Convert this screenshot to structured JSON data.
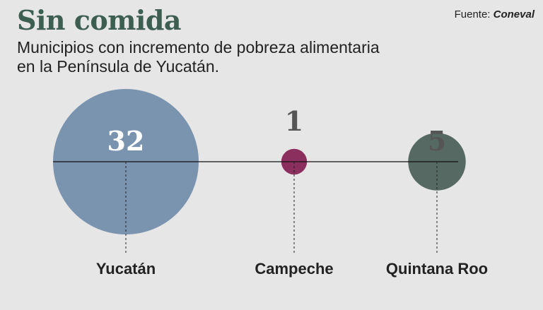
{
  "title": "Sin comida",
  "subtitle_line1": "Municipios con incremento de pobreza alimentaria",
  "subtitle_line2": "en la Península de Yucatán.",
  "source_label": "Fuente:",
  "source_name": "Coneval",
  "chart_data": {
    "type": "bubble",
    "categories": [
      "Yucatán",
      "Campeche",
      "Quintana Roo"
    ],
    "values": [
      32,
      1,
      5
    ],
    "colors": [
      "#7a94b0",
      "#8b2f5e",
      "#566962"
    ],
    "value_text_colors": [
      "#ffffff",
      "#555555",
      "#555555"
    ]
  }
}
